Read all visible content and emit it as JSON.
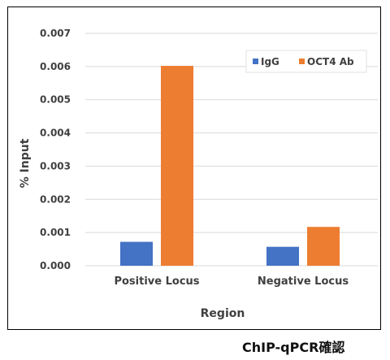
{
  "chart_data": {
    "type": "bar",
    "categories": [
      "Positive Locus",
      "Negative Locus"
    ],
    "series": [
      {
        "name": "IgG",
        "values": [
          0.00072,
          0.00057
        ],
        "color": "#4472C4"
      },
      {
        "name": "OCT4 Ab",
        "values": [
          0.00602,
          0.00117
        ],
        "color": "#ED7D31"
      }
    ],
    "xlabel": "Region",
    "ylabel": "% Input",
    "ylim": [
      0,
      0.007
    ],
    "yticks": [
      "0.000",
      "0.001",
      "0.002",
      "0.003",
      "0.004",
      "0.005",
      "0.006",
      "0.007"
    ],
    "grid": true,
    "legend_position": "top-right",
    "grid_color": "#d9d9d9"
  },
  "caption": "ChIP-qPCR確認"
}
